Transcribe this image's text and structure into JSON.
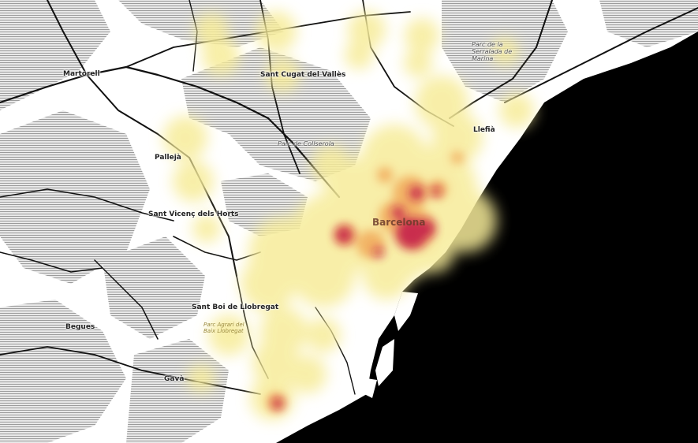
{
  "labels": {
    "martorell": "Martorell",
    "sant_cugat": "Sant Cugat del Vallès",
    "collserola": "Parc de Collserola",
    "serralada": "Parc de la Serralada de Marina",
    "lleida": "Llefià",
    "pallejo": "Pallejà",
    "sant_vicenc": "Sant Vicenç dels Horts",
    "barcelona": "Barcelona",
    "sant_boi": "Sant Boi de Llobregat",
    "baix_llobregat": "Parc Agrari del Baix Llobregat",
    "begues": "Begues",
    "gava": "Gavà"
  },
  "colors": {
    "land": "#ffffff",
    "terrain": "#9a9a9a",
    "sea": "#000000",
    "road": "#111111",
    "heat_low": "#f7ec9a",
    "heat_mid": "#f0a050",
    "heat_high": "#c2184a"
  }
}
